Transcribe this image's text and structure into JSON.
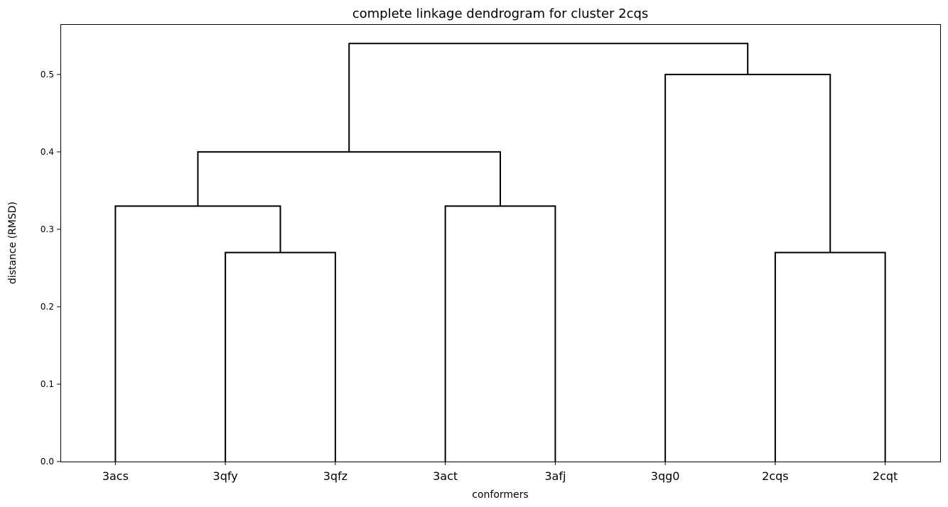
{
  "chart_data": {
    "type": "dendrogram",
    "title": "complete linkage dendrogram for cluster 2cqs",
    "xlabel": "conformers",
    "ylabel": "distance (RMSD)",
    "leaves": [
      "3acs",
      "3qfy",
      "3qfz",
      "3act",
      "3afj",
      "3qg0",
      "2cqs",
      "2cqt"
    ],
    "ylim": [
      0,
      0.565
    ],
    "yticks": [
      "0.0",
      "0.1",
      "0.2",
      "0.3",
      "0.4",
      "0.5"
    ],
    "merges": [
      {
        "left": "3qfy",
        "right": "3qfz",
        "height": 0.27
      },
      {
        "left": "3acs",
        "right": "3qfy+3qfz",
        "height": 0.33
      },
      {
        "left": "3act",
        "right": "3afj",
        "height": 0.33
      },
      {
        "left": "3acs+3qfy+3qfz",
        "right": "3act+3afj",
        "height": 0.4
      },
      {
        "left": "2cqs",
        "right": "2cqt",
        "height": 0.27
      },
      {
        "left": "3qg0",
        "right": "2cqs+2cqt",
        "height": 0.5
      },
      {
        "left": "3acs+3qfy+3qfz+3act+3afj",
        "right": "3qg0+2cqs+2cqt",
        "height": 0.54
      }
    ],
    "line_color": "#000000",
    "grid": false
  }
}
